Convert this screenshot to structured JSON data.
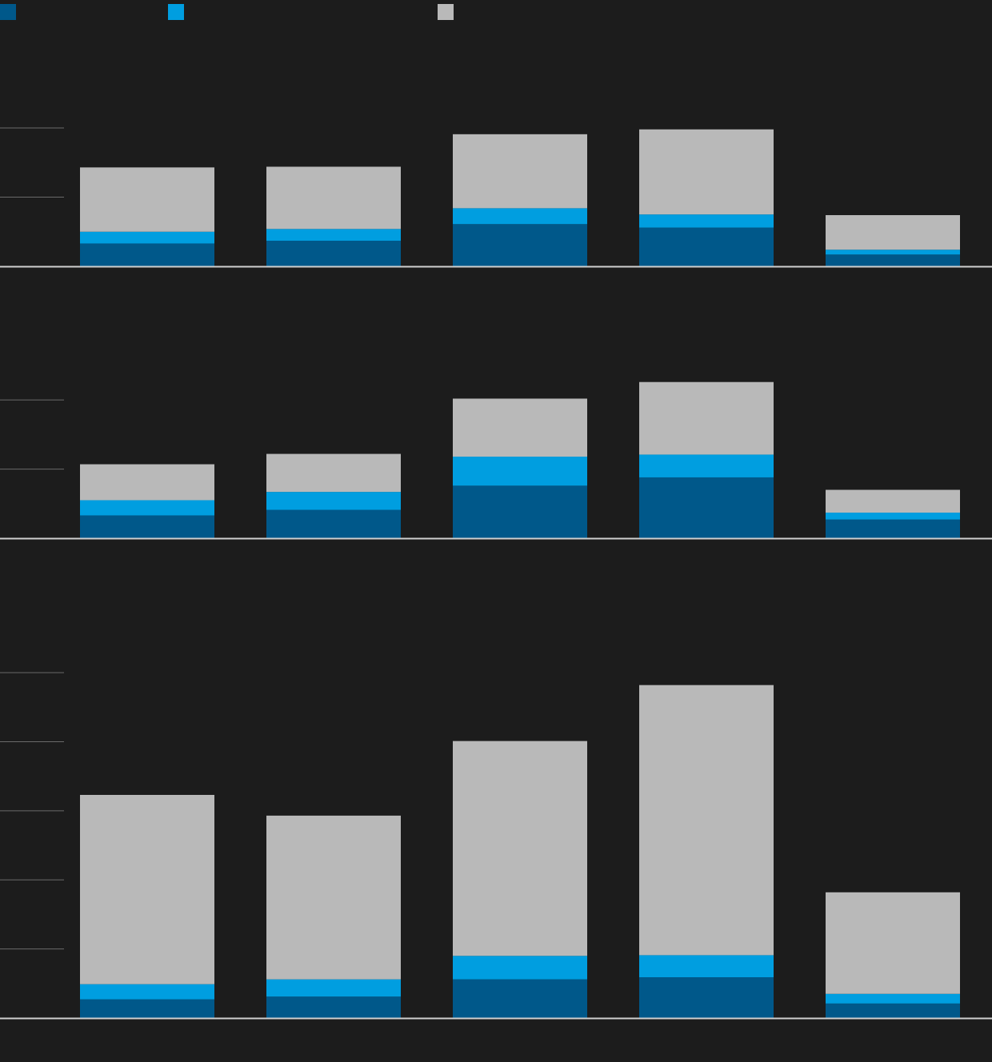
{
  "chart_data": [
    {
      "type": "bar",
      "stacked": true,
      "grid": true,
      "categories": [
        null,
        null,
        null,
        null,
        null
      ],
      "ylim": [
        0,
        3.4
      ],
      "yticks": [
        1,
        2
      ],
      "series": [
        {
          "color": "#00588a",
          "values": [
            0.33,
            0.37,
            0.61,
            0.56,
            0.17
          ]
        },
        {
          "color": "#009ee0",
          "values": [
            0.17,
            0.17,
            0.23,
            0.19,
            0.07
          ]
        },
        {
          "color": "#b9b9b9",
          "values": [
            0.93,
            0.9,
            1.07,
            1.23,
            0.5
          ]
        }
      ]
    },
    {
      "type": "bar",
      "stacked": true,
      "grid": true,
      "categories": [
        null,
        null,
        null,
        null,
        null
      ],
      "ylim": [
        0,
        3.9
      ],
      "yticks": [
        1,
        2
      ],
      "series": [
        {
          "color": "#00588a",
          "values": [
            0.33,
            0.41,
            0.76,
            0.88,
            0.27
          ]
        },
        {
          "color": "#009ee0",
          "values": [
            0.22,
            0.26,
            0.42,
            0.33,
            0.1
          ]
        },
        {
          "color": "#b9b9b9",
          "values": [
            0.52,
            0.55,
            0.84,
            1.05,
            0.33
          ]
        }
      ]
    },
    {
      "type": "bar",
      "stacked": true,
      "grid": true,
      "categories": [
        null,
        null,
        null,
        null,
        null
      ],
      "ylim": [
        0,
        6.9
      ],
      "yticks": [
        1,
        2,
        3,
        4,
        5
      ],
      "series": [
        {
          "color": "#00588a",
          "values": [
            0.27,
            0.31,
            0.56,
            0.59,
            0.21
          ]
        },
        {
          "color": "#009ee0",
          "values": [
            0.22,
            0.25,
            0.34,
            0.32,
            0.14
          ]
        },
        {
          "color": "#b9b9b9",
          "values": [
            2.74,
            2.37,
            3.11,
            3.91,
            1.47
          ]
        }
      ]
    }
  ]
}
